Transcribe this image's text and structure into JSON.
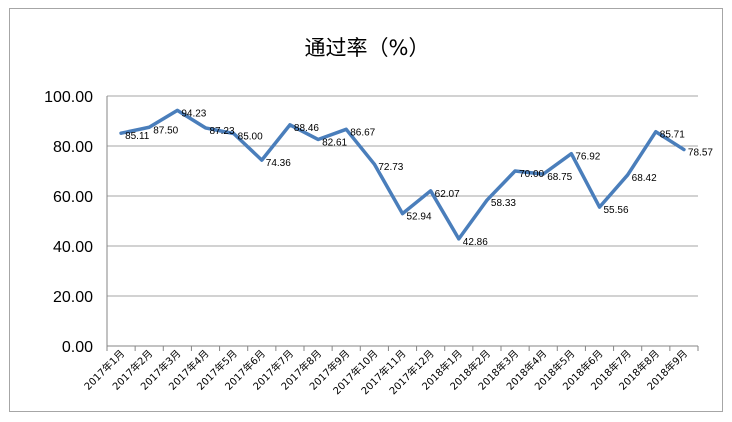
{
  "chart_data": {
    "type": "line",
    "title": "通过率（%）",
    "xlabel": "",
    "ylabel": "",
    "ylim": [
      0,
      100
    ],
    "yticks": [
      "0.00",
      "20.00",
      "40.00",
      "60.00",
      "80.00",
      "100.00"
    ],
    "grid": true,
    "legend": "none",
    "categories": [
      "2017年1月",
      "2017年2月",
      "2017年3月",
      "2017年4月",
      "2017年5月",
      "2017年6月",
      "2017年7月",
      "2017年8月",
      "2017年9月",
      "2017年10月",
      "2017年11月",
      "2017年12月",
      "2018年1月",
      "2018年2月",
      "2018年3月",
      "2018年4月",
      "2018年5月",
      "2018年6月",
      "2018年7月",
      "2018年8月",
      "2018年9月"
    ],
    "series": [
      {
        "color": "#4a7ebb",
        "values": [
          85.11,
          87.5,
          94.23,
          87.23,
          85.0,
          74.36,
          88.46,
          82.61,
          86.67,
          72.73,
          52.94,
          62.07,
          42.86,
          58.33,
          70.0,
          68.75,
          76.92,
          55.56,
          68.42,
          85.71,
          78.57
        ],
        "labels": [
          "85.11",
          "87.50",
          "94.23",
          "87.23",
          "85.00",
          "74.36",
          "88.46",
          "82.61",
          "86.67",
          "72.73",
          "52.94",
          "62.07",
          "42.86",
          "58.33",
          "70.00",
          "68.75",
          "76.92",
          "55.56",
          "68.42",
          "85.71",
          "78.57"
        ]
      }
    ]
  }
}
